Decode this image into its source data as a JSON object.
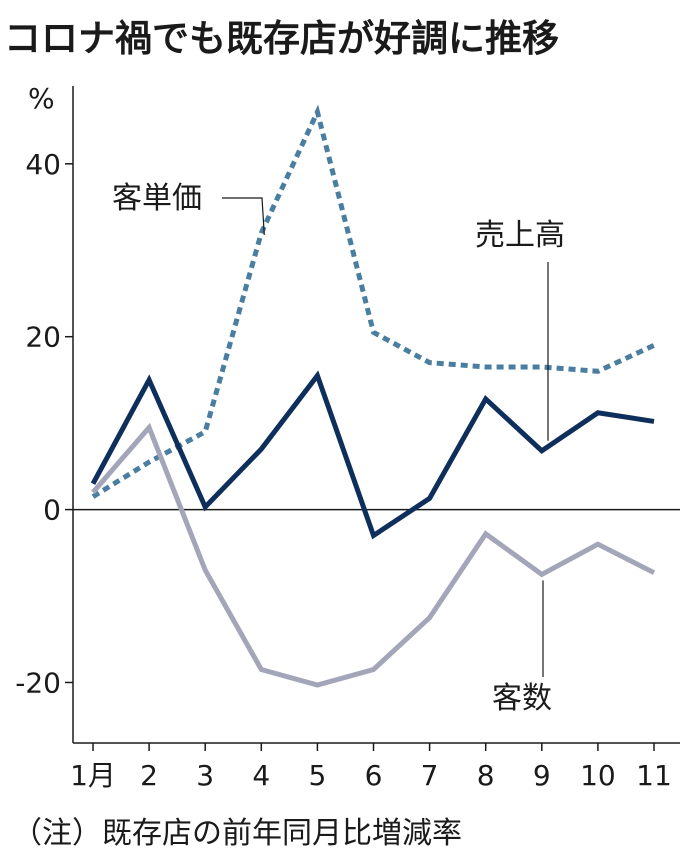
{
  "title": "コロナ禍でも既存店が好調に推移",
  "note": "（注）既存店の前年同月比増減率",
  "chart_data": {
    "type": "line",
    "title": "コロナ禍でも既存店が好調に推移",
    "ylabel": "%",
    "xlabel": "",
    "ylim": [
      -27,
      49
    ],
    "yticks": [
      -20,
      0,
      20,
      40
    ],
    "yticklabels": [
      "-20",
      "0",
      "20",
      "40"
    ],
    "categories": [
      "1月",
      "2",
      "3",
      "4",
      "5",
      "6",
      "7",
      "8",
      "9",
      "10",
      "11"
    ],
    "series": [
      {
        "name": "客単価",
        "style": "dotted",
        "color": "#4a7ea0",
        "values": [
          1.5,
          5.5,
          9.0,
          32.0,
          46.0,
          20.5,
          17.0,
          16.5,
          16.5,
          16.0,
          19.0
        ]
      },
      {
        "name": "売上高",
        "style": "solid",
        "color": "#0e2f5c",
        "values": [
          3.0,
          15.0,
          0.3,
          7.0,
          15.5,
          -3.0,
          1.3,
          12.8,
          6.8,
          11.2,
          10.2
        ]
      },
      {
        "name": "客数",
        "style": "solid",
        "color": "#a3a5b9",
        "values": [
          2.0,
          9.5,
          -7.0,
          -18.5,
          -20.3,
          -18.5,
          -12.5,
          -2.8,
          -7.5,
          -4.0,
          -7.3
        ]
      }
    ],
    "annotations": [
      "客単価",
      "売上高",
      "客数"
    ]
  }
}
